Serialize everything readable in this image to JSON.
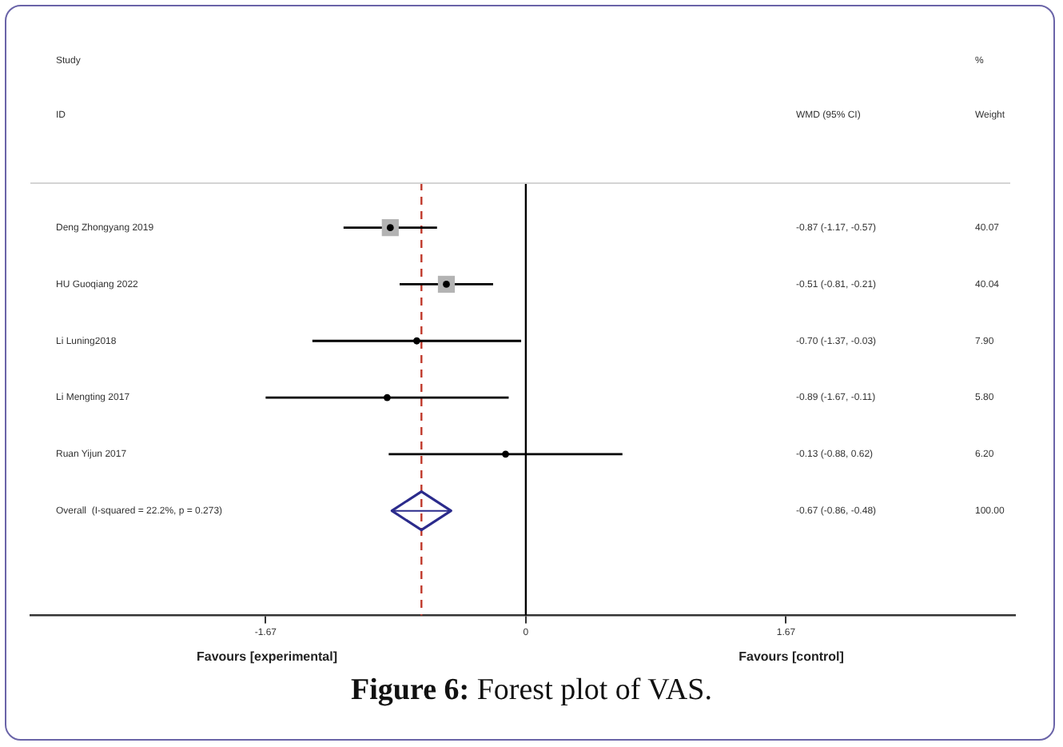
{
  "chart_data": {
    "type": "scatter",
    "orientation": "horizontal",
    "title": "Figure 6: Forest plot of VAS.",
    "categories": [
      "Deng Zhongyang 2019",
      "HU Guoqiang 2022",
      "Li Luning2018",
      "Li Mengting 2017",
      "Ruan Yijun 2017",
      "Overall  (I-squared = 22.2%, p = 0.273)"
    ],
    "series": [
      {
        "color": "#b3b3b3",
        "marker": "square",
        "values": [
          -0.87,
          -0.51,
          null,
          null,
          null,
          null
        ],
        "sizes": [
          1,
          0.999,
          null,
          null,
          null,
          null
        ]
      },
      {
        "color": "#000000",
        "marker": "circle",
        "values": [
          -0.87,
          -0.51,
          -0.7,
          -0.89,
          -0.13,
          null
        ],
        "errors": [
          [
            -1.17,
            -0.57
          ],
          [
            -0.81,
            -0.21
          ],
          [
            -1.37,
            -0.03
          ],
          [
            -1.67,
            -0.11
          ],
          [
            -0.88,
            0.62
          ],
          null
        ]
      },
      {
        "color": "#2b2b8c",
        "marker": "diamond",
        "values": [
          null,
          null,
          null,
          null,
          null,
          -0.67
        ],
        "errors": [
          null,
          null,
          null,
          null,
          null,
          [
            -0.86,
            -0.48
          ]
        ]
      }
    ],
    "xlim": [
      -3.18,
      3.14
    ],
    "xticks": [
      -1.67,
      0,
      1.67
    ],
    "grid": false,
    "legend": false,
    "ref_lines": [
      {
        "axis": "x",
        "value": -0.67,
        "color": "#c0392b",
        "line_style": "dashed"
      },
      {
        "axis": "x",
        "value": 0,
        "color": "#000000",
        "line_style": "solid"
      }
    ],
    "annotations": [
      "Study",
      "ID",
      "WMD (95% CI)",
      "%",
      "Weight",
      "-0.87 (-1.17, -0.57)",
      "-0.51 (-0.81, -0.21)",
      "-0.70 (-1.37, -0.03)",
      "-0.89 (-1.67, -0.11)",
      "-0.13 (-0.88, 0.62)",
      "-0.67 (-0.86, -0.48)",
      "40.07",
      "40.04",
      "7.90",
      "5.80",
      "6.20",
      "100.00",
      "Favours [experimental]",
      "Favours [control]"
    ]
  }
}
